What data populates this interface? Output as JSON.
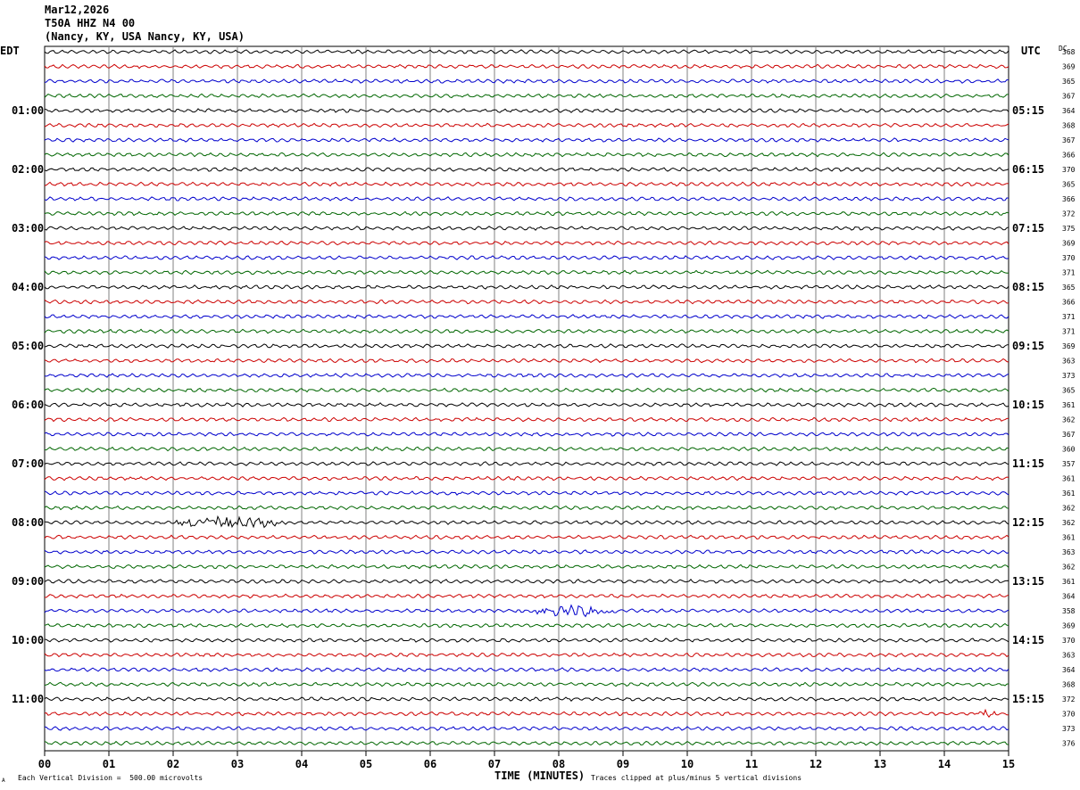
{
  "header": {
    "date": "Mar12,2026",
    "station": "T50A HHZ N4 00",
    "location": "(Nancy, KY, USA Nancy, KY, USA)"
  },
  "left_zone_label": "EDT",
  "right_zone_label": "UTC",
  "dc_label": "DC",
  "footer": {
    "scale_note": "Each Vertical Division =  500.00 microvolts",
    "xlabel": "TIME (MINUTES)",
    "clip_note": "Traces clipped at plus/minus 5 vertical divisions",
    "corner_mark": "A"
  },
  "colors": {
    "trace_cycle": [
      "#000000",
      "#cc0000",
      "#0000cc",
      "#006600"
    ],
    "grid": "#808080"
  },
  "chart_data": {
    "type": "line",
    "title": "Mar12,2026 T50A HHZ N4 00",
    "xlabel": "TIME (MINUTES)",
    "xlim": [
      0,
      15
    ],
    "x_ticks": [
      "00",
      "01",
      "02",
      "03",
      "04",
      "05",
      "06",
      "07",
      "08",
      "09",
      "10",
      "11",
      "12",
      "13",
      "14",
      "15"
    ],
    "trace_count": 48,
    "minutes_per_trace": 15,
    "left_hour_labels": [
      "01:00",
      "02:00",
      "03:00",
      "04:00",
      "05:00",
      "06:00",
      "07:00",
      "08:00",
      "09:00",
      "10:00",
      "11:00"
    ],
    "right_hour_labels": [
      "05:15",
      "06:15",
      "07:15",
      "08:15",
      "09:15",
      "10:15",
      "11:15",
      "12:15",
      "13:15",
      "14:15",
      "15:15"
    ],
    "dc_offsets": [
      368,
      369,
      365,
      367,
      364,
      368,
      367,
      366,
      370,
      365,
      366,
      372,
      375,
      369,
      370,
      371,
      365,
      366,
      371,
      371,
      369,
      363,
      373,
      365,
      361,
      362,
      367,
      360,
      357,
      361,
      361,
      362,
      362,
      361,
      363,
      362,
      361,
      364,
      358,
      369,
      370,
      363,
      364,
      368,
      372,
      370,
      373,
      376
    ],
    "events": [
      {
        "trace": 32,
        "start_min": 2.0,
        "end_min": 3.7,
        "amplitude": "moderate"
      },
      {
        "trace": 38,
        "start_min": 7.4,
        "end_min": 8.9,
        "amplitude": "moderate"
      },
      {
        "trace": 45,
        "start_min": 14.5,
        "end_min": 14.8,
        "amplitude": "small"
      }
    ]
  }
}
